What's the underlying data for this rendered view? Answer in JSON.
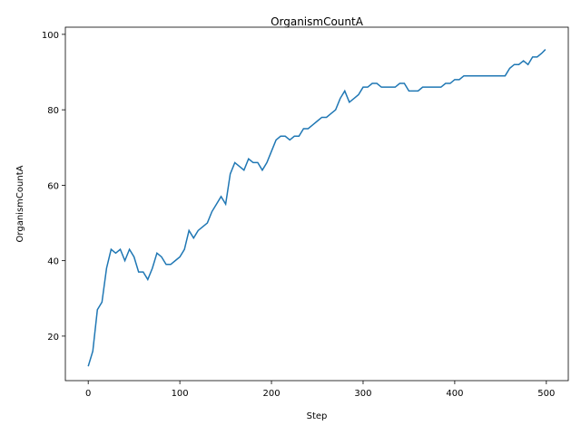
{
  "chart_data": {
    "type": "line",
    "title": "OrganismCountA",
    "x_label": "Step",
    "y_label": "OrganismCountA",
    "x": [
      0,
      5,
      10,
      15,
      20,
      25,
      30,
      35,
      40,
      45,
      50,
      55,
      60,
      65,
      70,
      75,
      80,
      85,
      90,
      95,
      100,
      105,
      110,
      115,
      120,
      125,
      130,
      135,
      140,
      145,
      150,
      155,
      160,
      165,
      170,
      175,
      180,
      185,
      190,
      195,
      200,
      205,
      210,
      215,
      220,
      225,
      230,
      235,
      240,
      245,
      250,
      255,
      260,
      265,
      270,
      275,
      280,
      285,
      290,
      295,
      300,
      305,
      310,
      315,
      320,
      325,
      330,
      335,
      340,
      345,
      350,
      355,
      360,
      365,
      370,
      375,
      380,
      385,
      390,
      395,
      400,
      405,
      410,
      415,
      420,
      425,
      430,
      435,
      440,
      445,
      450,
      455,
      460,
      465,
      470,
      475,
      480,
      485,
      490,
      495,
      499
    ],
    "values": [
      12,
      16,
      27,
      29,
      38,
      43,
      42,
      43,
      40,
      43,
      41,
      37,
      37,
      35,
      38,
      42,
      41,
      39,
      39,
      40,
      41,
      43,
      48,
      46,
      48,
      49,
      50,
      53,
      55,
      57,
      55,
      63,
      66,
      65,
      64,
      67,
      66,
      66,
      64,
      66,
      69,
      72,
      73,
      73,
      72,
      73,
      73,
      75,
      75,
      76,
      77,
      78,
      78,
      79,
      80,
      83,
      85,
      82,
      83,
      84,
      86,
      86,
      87,
      87,
      86,
      86,
      86,
      86,
      87,
      87,
      85,
      85,
      85,
      86,
      86,
      86,
      86,
      86,
      87,
      87,
      88,
      88,
      89,
      89,
      89,
      89,
      89,
      89,
      89,
      89,
      89,
      89,
      91,
      92,
      92,
      93,
      92,
      94,
      94,
      95,
      96
    ],
    "color": "#1f77b4",
    "xlim": [
      -24.95,
      523.95
    ],
    "ylim": [
      8.2,
      101.9
    ],
    "xticks": [
      0,
      100,
      200,
      300,
      400,
      500
    ],
    "yticks": [
      20,
      40,
      60,
      80,
      100
    ]
  }
}
